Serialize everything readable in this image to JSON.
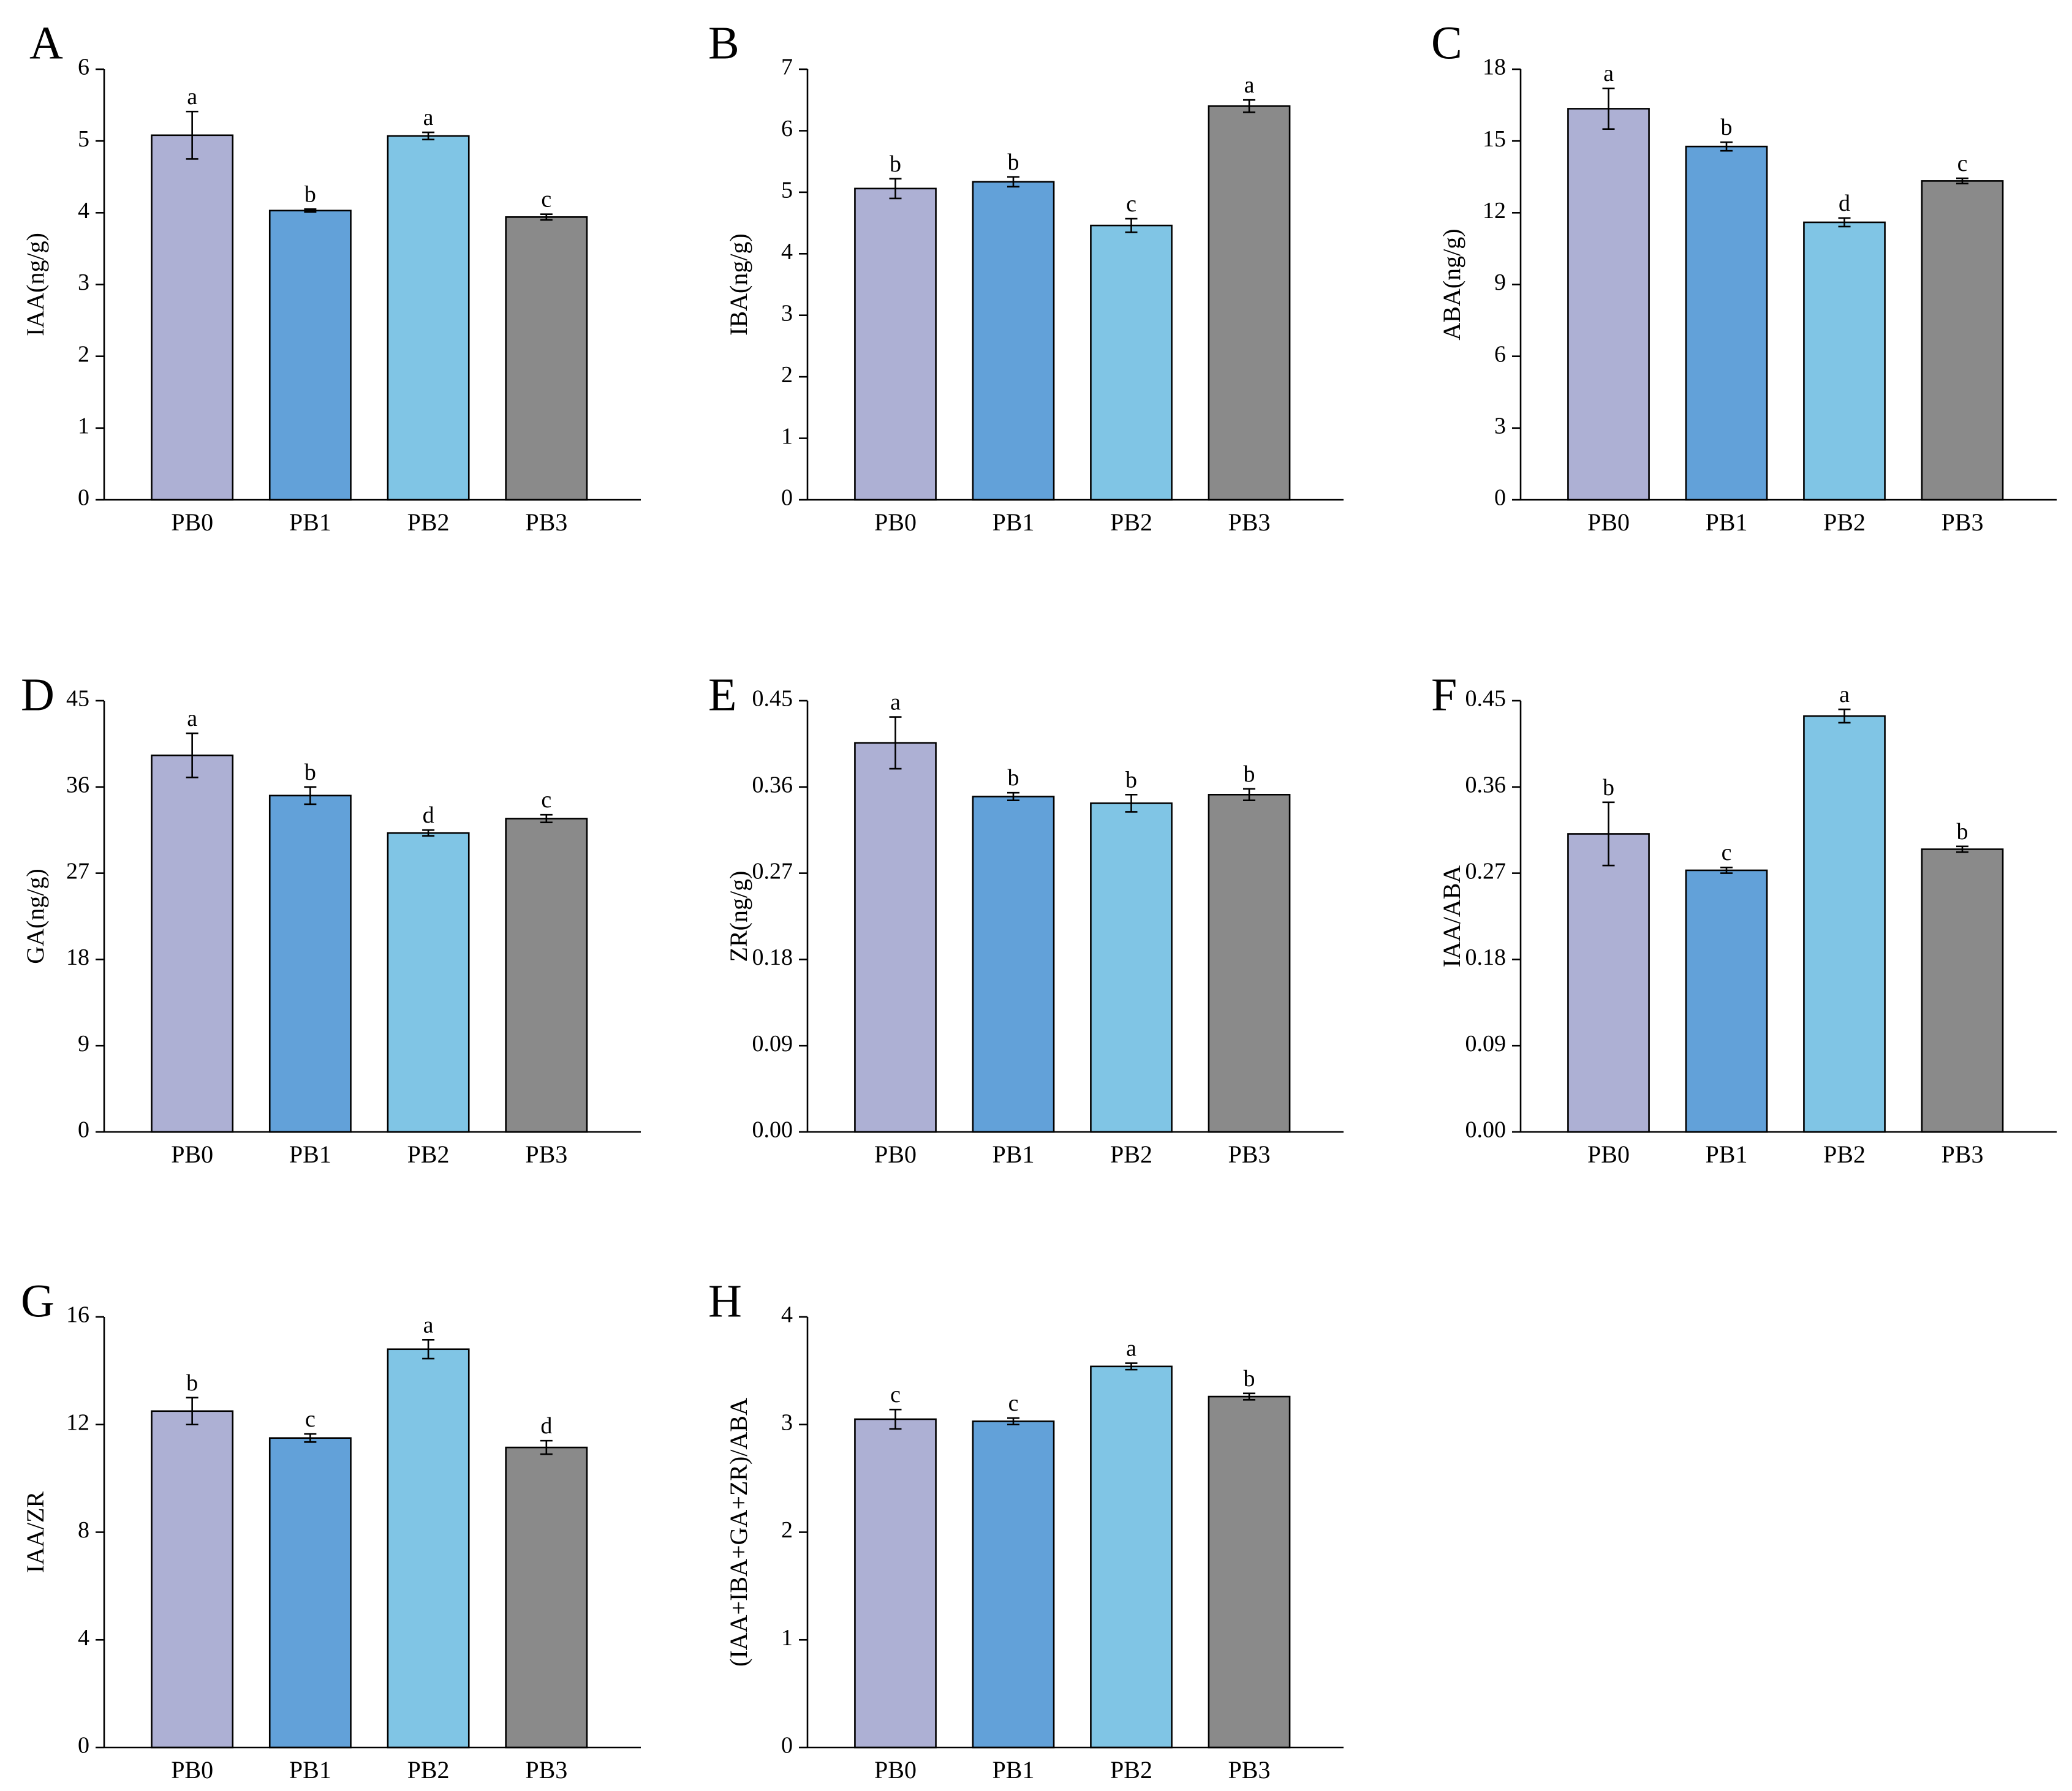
{
  "figure": {
    "category_label_prefix": "",
    "bar_colors": [
      "#adb0d4",
      "#62a1d9",
      "#80c5e5",
      "#8a8a8a"
    ],
    "axis_color": "#000000"
  },
  "chart_data": [
    {
      "id": "A",
      "type": "bar",
      "panel_letter": "A",
      "title": "",
      "xlabel": "",
      "ylabel": "IAA(ng/g)",
      "categories": [
        "PB0",
        "PB1",
        "PB2",
        "PB3"
      ],
      "values": [
        5.08,
        4.03,
        5.07,
        3.94
      ],
      "errors": [
        0.33,
        0.02,
        0.05,
        0.04
      ],
      "significance": [
        "a",
        "b",
        "a",
        "c"
      ],
      "ylim": [
        0,
        6
      ],
      "yticks": [
        "0",
        "1",
        "2",
        "3",
        "4",
        "5",
        "6"
      ]
    },
    {
      "id": "B",
      "type": "bar",
      "panel_letter": "B",
      "title": "",
      "xlabel": "",
      "ylabel": "IBA(ng/g)",
      "categories": [
        "PB0",
        "PB1",
        "PB2",
        "PB3"
      ],
      "values": [
        5.06,
        5.17,
        4.46,
        6.4
      ],
      "errors": [
        0.16,
        0.08,
        0.11,
        0.1
      ],
      "significance": [
        "b",
        "b",
        "c",
        "a"
      ],
      "ylim": [
        0,
        7
      ],
      "yticks": [
        "0",
        "1",
        "2",
        "3",
        "4",
        "5",
        "6",
        "7"
      ]
    },
    {
      "id": "C",
      "type": "bar",
      "panel_letter": "C",
      "title": "",
      "xlabel": "",
      "ylabel": "ABA(ng/g)",
      "categories": [
        "PB0",
        "PB1",
        "PB2",
        "PB3"
      ],
      "values": [
        16.35,
        14.77,
        11.6,
        13.33
      ],
      "errors": [
        0.85,
        0.18,
        0.18,
        0.11
      ],
      "significance": [
        "a",
        "b",
        "d",
        "c"
      ],
      "ylim": [
        0,
        18
      ],
      "yticks": [
        "0",
        "3",
        "6",
        "9",
        "12",
        "15",
        "18"
      ]
    },
    {
      "id": "D",
      "type": "bar",
      "panel_letter": "D",
      "title": "",
      "xlabel": "",
      "ylabel": "GA(ng/g)",
      "categories": [
        "PB0",
        "PB1",
        "PB2",
        "PB3"
      ],
      "values": [
        39.3,
        35.1,
        31.2,
        32.7
      ],
      "errors": [
        2.3,
        0.9,
        0.3,
        0.4
      ],
      "significance": [
        "a",
        "b",
        "d",
        "c"
      ],
      "ylim": [
        0,
        45
      ],
      "yticks": [
        "0",
        "9",
        "18",
        "27",
        "36",
        "45"
      ]
    },
    {
      "id": "E",
      "type": "bar",
      "panel_letter": "E",
      "title": "",
      "xlabel": "",
      "ylabel": "ZR(ng/g)",
      "categories": [
        "PB0",
        "PB1",
        "PB2",
        "PB3"
      ],
      "values": [
        0.406,
        0.35,
        0.343,
        0.352
      ],
      "errors": [
        0.027,
        0.004,
        0.009,
        0.006
      ],
      "significance": [
        "a",
        "b",
        "b",
        "b"
      ],
      "ylim": [
        0,
        0.45
      ],
      "yticks": [
        "0.00",
        "0.09",
        "0.18",
        "0.27",
        "0.36",
        "0.45"
      ]
    },
    {
      "id": "F",
      "type": "bar",
      "panel_letter": "F",
      "title": "",
      "xlabel": "",
      "ylabel": "IAA/ABA",
      "categories": [
        "PB0",
        "PB1",
        "PB2",
        "PB3"
      ],
      "values": [
        0.311,
        0.273,
        0.434,
        0.295
      ],
      "errors": [
        0.033,
        0.003,
        0.007,
        0.003
      ],
      "significance": [
        "b",
        "c",
        "a",
        "b"
      ],
      "ylim": [
        0,
        0.45
      ],
      "yticks": [
        "0.00",
        "0.09",
        "0.18",
        "0.27",
        "0.36",
        "0.45"
      ]
    },
    {
      "id": "G",
      "type": "bar",
      "panel_letter": "G",
      "title": "",
      "xlabel": "",
      "ylabel": "IAA/ZR",
      "categories": [
        "PB0",
        "PB1",
        "PB2",
        "PB3"
      ],
      "values": [
        12.5,
        11.5,
        14.8,
        11.15
      ],
      "errors": [
        0.5,
        0.15,
        0.35,
        0.25
      ],
      "significance": [
        "b",
        "c",
        "a",
        "d"
      ],
      "ylim": [
        0,
        16
      ],
      "yticks": [
        "0",
        "4",
        "8",
        "12",
        "16"
      ]
    },
    {
      "id": "H",
      "type": "bar",
      "panel_letter": "H",
      "title": "",
      "xlabel": "",
      "ylabel": "(IAA+IBA+GA+ZR)/ABA",
      "categories": [
        "PB0",
        "PB1",
        "PB2",
        "PB3"
      ],
      "values": [
        3.05,
        3.03,
        3.54,
        3.26
      ],
      "errors": [
        0.09,
        0.03,
        0.03,
        0.03
      ],
      "significance": [
        "c",
        "c",
        "a",
        "b"
      ],
      "ylim": [
        0,
        4
      ],
      "yticks": [
        "0",
        "1",
        "2",
        "3",
        "4"
      ]
    }
  ]
}
